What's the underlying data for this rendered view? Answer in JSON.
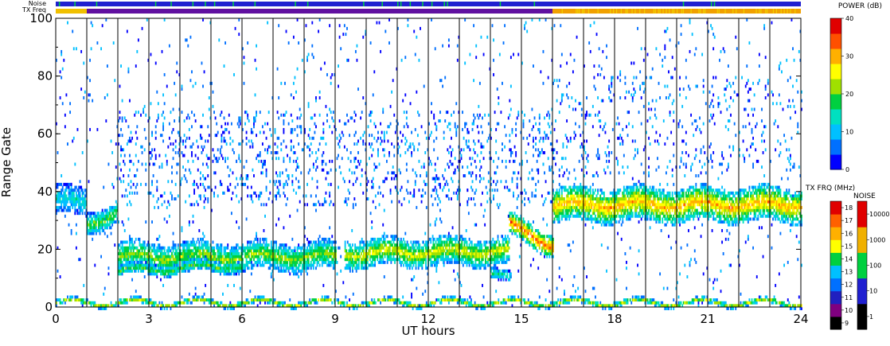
{
  "chart_data": {
    "type": "heatmap",
    "xlabel": "UT hours",
    "ylabel": "Range Gate",
    "xlim": [
      0,
      24
    ],
    "ylim": [
      0,
      100
    ],
    "x_ticks": [
      0,
      3,
      6,
      9,
      12,
      15,
      18,
      21,
      24
    ],
    "y_ticks": [
      0,
      20,
      40,
      60,
      80,
      100
    ],
    "scan_boundaries_ut": [
      1,
      2,
      3,
      4,
      5,
      6,
      7,
      8,
      9,
      10,
      11,
      12,
      13,
      14,
      15,
      16,
      17,
      18,
      19,
      20,
      21,
      22,
      23
    ],
    "strip_labels": {
      "noise": "Noise",
      "txfreq": "TX Freq"
    },
    "strip_segments": {
      "noise_color": "#2020d0",
      "txfreq": [
        {
          "from": 0,
          "to": 1,
          "color": "#f0c000"
        },
        {
          "from": 1,
          "to": 16,
          "color": "#6010a0"
        },
        {
          "from": 16,
          "to": 24,
          "color": "#f0a000"
        }
      ]
    },
    "power_colorbar": {
      "title": "POWER (dB)",
      "ticks": [
        0,
        10,
        20,
        30,
        40
      ],
      "colors": [
        "#0000ff",
        "#0070ff",
        "#00c0ff",
        "#00e0c0",
        "#00d040",
        "#a0e000",
        "#ffff00",
        "#ffb000",
        "#ff5000",
        "#e00000"
      ]
    },
    "txfreq_colorbar": {
      "title": "TX FRQ (MHz)",
      "ticks": [
        9,
        10,
        11,
        12,
        13,
        14,
        15,
        16,
        17,
        18
      ],
      "colors": [
        "#000000",
        "#800080",
        "#2020c0",
        "#0070ff",
        "#00c0ff",
        "#00d040",
        "#ffff00",
        "#ffb000",
        "#ff6000",
        "#e00000"
      ]
    },
    "noise_colorbar": {
      "title": "NOISE",
      "ticks": [
        "1",
        "10",
        "100",
        "1000",
        "10000"
      ],
      "colors": [
        "#000000",
        "#2020d0",
        "#00d040",
        "#f0b000",
        "#e00000"
      ]
    },
    "echo_bands": [
      {
        "start_ut": 0.0,
        "end_ut": 1.0,
        "gate_center_start": 37,
        "gate_center_end": 35,
        "half_width": 5,
        "peak_db": 14
      },
      {
        "start_ut": 1.0,
        "end_ut": 2.0,
        "gate_center_start": 28,
        "gate_center_end": 33,
        "half_width": 4,
        "peak_db": 20
      },
      {
        "start_ut": 2.0,
        "end_ut": 9.0,
        "gate_center_start": 17,
        "gate_center_end": 17,
        "half_width": 5,
        "peak_db": 22
      },
      {
        "start_ut": 2.0,
        "end_ut": 6.0,
        "gate_center_start": 12,
        "gate_center_end": 14,
        "half_width": 2,
        "peak_db": 20
      },
      {
        "start_ut": 9.3,
        "end_ut": 14.6,
        "gate_center_start": 18,
        "gate_center_end": 19,
        "half_width": 5,
        "peak_db": 25
      },
      {
        "start_ut": 14.0,
        "end_ut": 14.6,
        "gate_center_start": 12,
        "gate_center_end": 9,
        "half_width": 2,
        "peak_db": 16
      },
      {
        "start_ut": 14.6,
        "end_ut": 16.0,
        "gate_center_start": 28,
        "gate_center_end": 21,
        "half_width": 4,
        "peak_db": 34
      },
      {
        "start_ut": 16.0,
        "end_ut": 24.0,
        "gate_center_start": 35,
        "gate_center_end": 35,
        "half_width": 6,
        "peak_db": 30
      },
      {
        "start_ut": 0.0,
        "end_ut": 24.0,
        "gate_center_start": 1,
        "gate_center_end": 1,
        "half_width": 1,
        "peak_db": 24
      }
    ],
    "scattered_regions": [
      {
        "start_ut": 0,
        "end_ut": 24,
        "gate_min": 0,
        "gate_max": 100,
        "density": 0.02
      },
      {
        "start_ut": 2,
        "end_ut": 16,
        "gate_min": 35,
        "gate_max": 68,
        "density": 0.09
      },
      {
        "start_ut": 16,
        "end_ut": 24,
        "gate_min": 45,
        "gate_max": 80,
        "density": 0.05
      }
    ]
  }
}
